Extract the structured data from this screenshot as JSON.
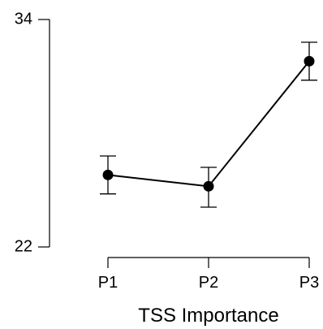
{
  "chart_data": {
    "type": "line",
    "categories": [
      "P1",
      "P2",
      "P3"
    ],
    "series": [
      {
        "values": [
          25.8,
          25.2,
          31.8
        ],
        "error_low": [
          24.8,
          24.1,
          30.8
        ],
        "error_high": [
          26.8,
          26.2,
          32.8
        ]
      }
    ],
    "ylim": [
      22,
      34
    ],
    "yticks": [
      "34",
      "22"
    ],
    "xlabel": "TSS Importance",
    "ylabel": "",
    "grid": false,
    "colors": {
      "line": "#000000",
      "marker": "#000000"
    }
  }
}
